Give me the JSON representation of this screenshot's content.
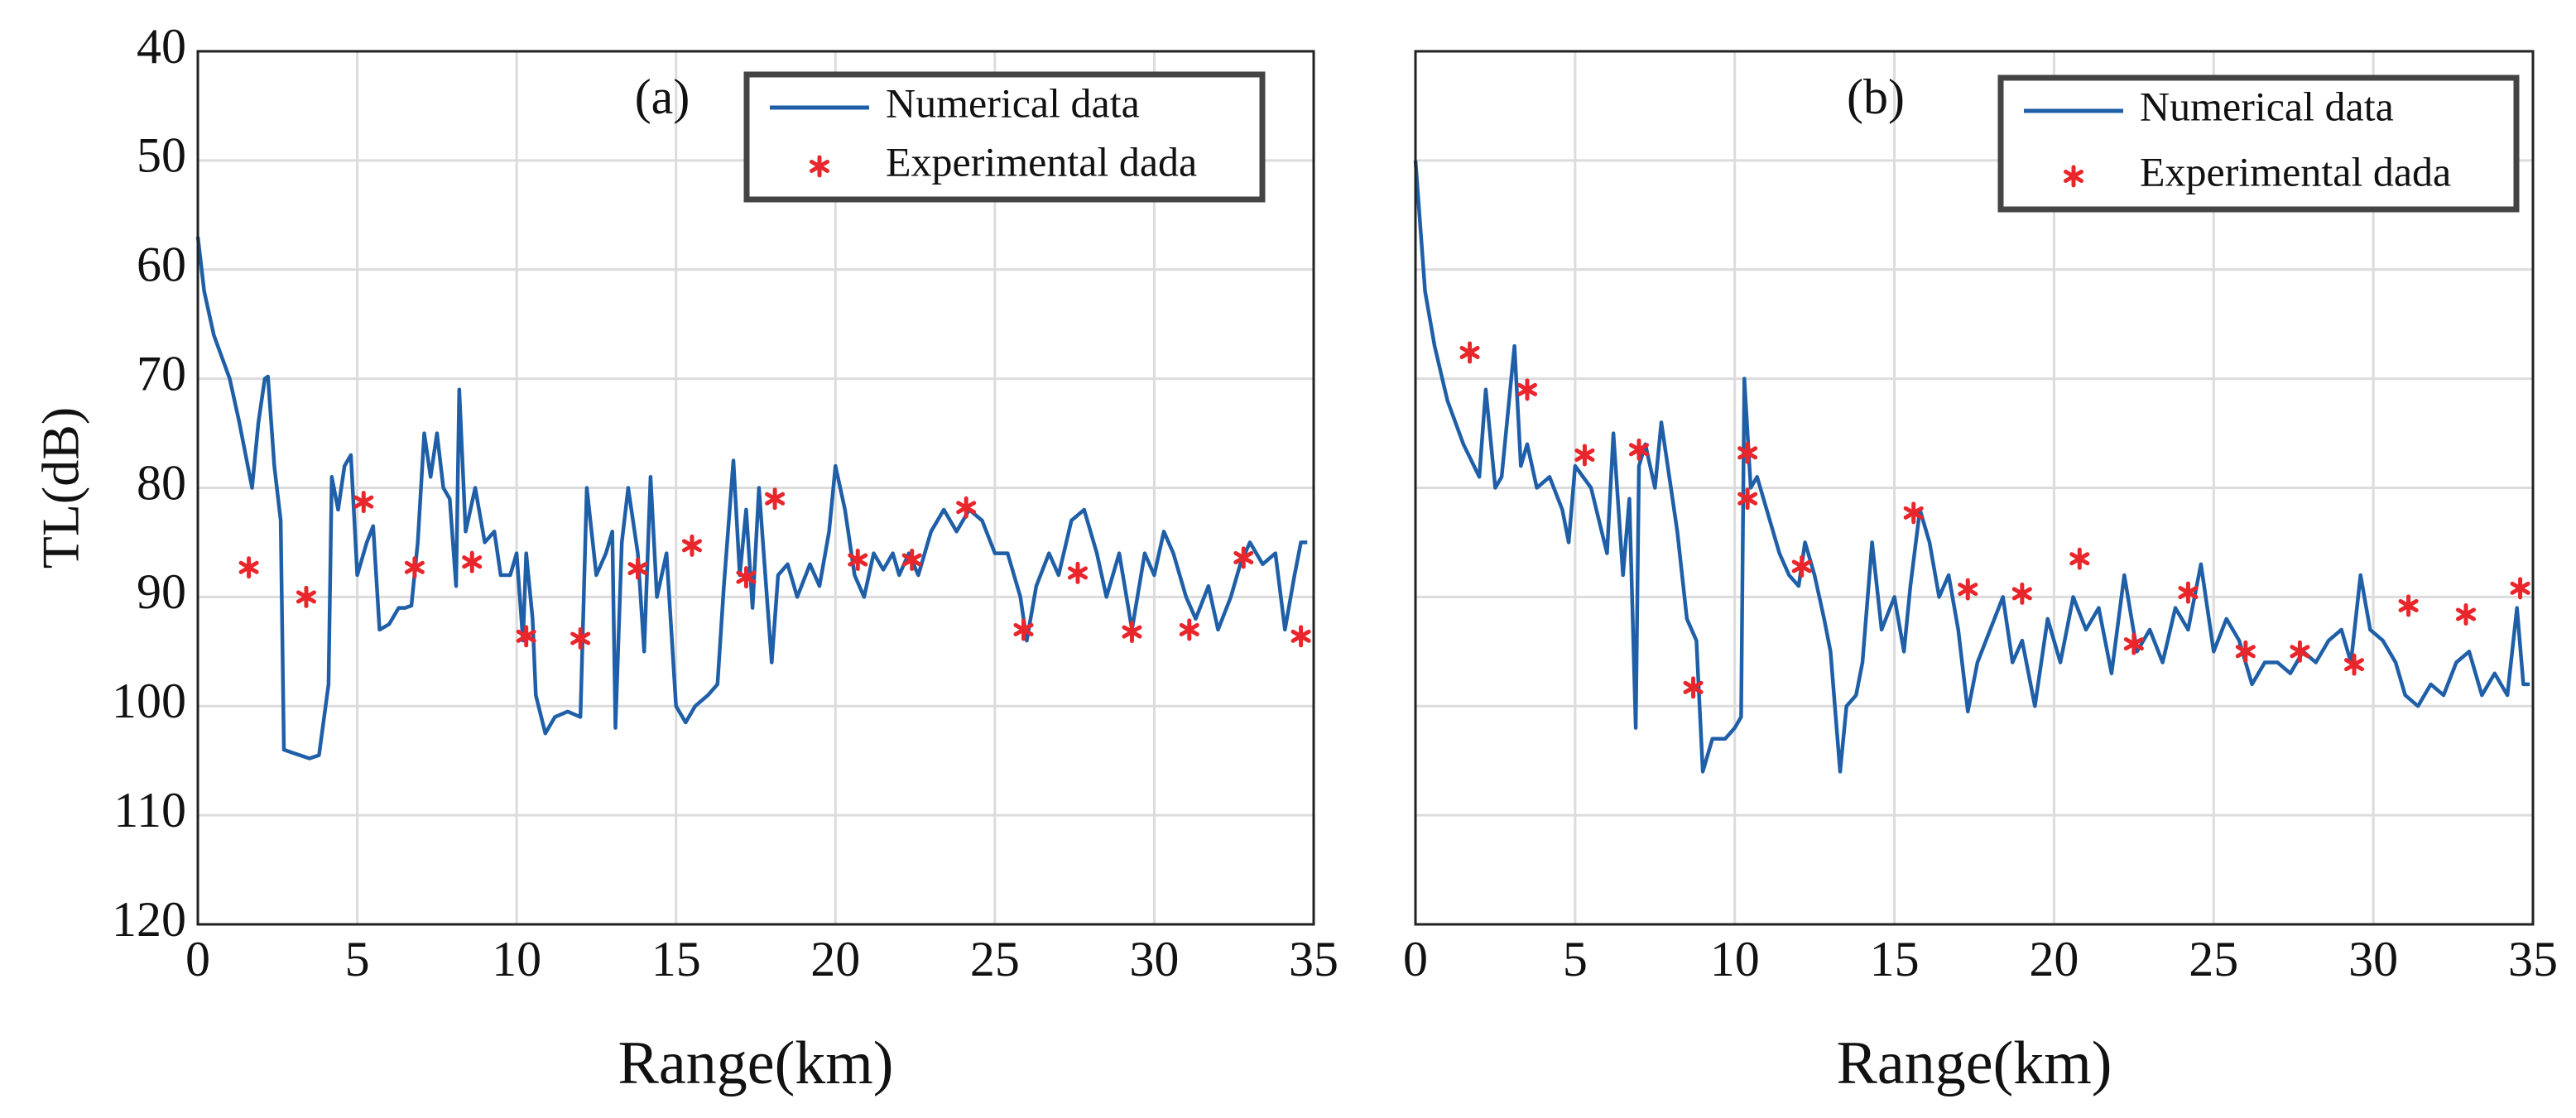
{
  "chart_data": [
    {
      "type": "line",
      "panel_label": "(a)",
      "xlabel": "Range(km)",
      "ylabel": "TL(dB)",
      "xlim": [
        0,
        35
      ],
      "xticks": [
        0,
        5,
        10,
        15,
        20,
        25,
        30,
        35
      ],
      "ylim": [
        120,
        40
      ],
      "yticks": [
        40,
        50,
        60,
        70,
        80,
        90,
        100,
        110,
        120
      ],
      "grid": true,
      "legend": "upper right",
      "series": [
        {
          "name": "Numerical data",
          "color": "#1f5fa8",
          "marker": "none",
          "x": [
            0,
            0.2,
            0.5,
            1,
            1.3,
            1.5,
            1.7,
            1.9,
            2.1,
            2.2,
            2.4,
            2.6,
            2.7,
            3,
            3.5,
            3.8,
            4.1,
            4.2,
            4.4,
            4.6,
            4.8,
            5.0,
            5.3,
            5.5,
            5.7,
            6,
            6.3,
            6.5,
            6.7,
            6.9,
            7.1,
            7.3,
            7.5,
            7.7,
            7.9,
            8.1,
            8.2,
            8.4,
            8.7,
            9,
            9.3,
            9.5,
            9.8,
            10,
            10.2,
            10.3,
            10.5,
            10.6,
            10.9,
            11.2,
            11.6,
            12,
            12.2,
            12.5,
            12.8,
            13,
            13.1,
            13.3,
            13.5,
            13.8,
            14,
            14.2,
            14.4,
            14.7,
            15,
            15.3,
            15.6,
            16,
            16.3,
            16.5,
            16.8,
            17,
            17.2,
            17.4,
            17.6,
            17.9,
            18,
            18.2,
            18.5,
            18.8,
            19.2,
            19.5,
            19.8,
            20,
            20.3,
            20.6,
            20.9,
            21.2,
            21.5,
            21.8,
            22,
            22.3,
            22.6,
            23,
            23.4,
            23.8,
            24.2,
            24.6,
            25,
            25.4,
            25.8,
            26,
            26.3,
            26.7,
            27,
            27.4,
            27.8,
            28.2,
            28.5,
            28.9,
            29.3,
            29.7,
            30,
            30.3,
            30.6,
            31,
            31.3,
            31.7,
            32,
            32.4,
            32.7,
            33,
            33.4,
            33.8,
            34.1,
            34.4,
            34.6,
            34.8
          ],
          "values": [
            57,
            62,
            66,
            70,
            74,
            77,
            80,
            74,
            70,
            69.8,
            78,
            83,
            104,
            104.3,
            104.8,
            104.5,
            98,
            79,
            82,
            78,
            77,
            88,
            85,
            83.5,
            93,
            92.5,
            91,
            91,
            90.8,
            85,
            75,
            79,
            75,
            80,
            81,
            89,
            71,
            84,
            80,
            85,
            84,
            88,
            88,
            86,
            94,
            86,
            92,
            99,
            102.5,
            101,
            100.5,
            101,
            80,
            88,
            86,
            84,
            102,
            85,
            80,
            86,
            95,
            79,
            90,
            86,
            100,
            101.5,
            100,
            99,
            98,
            89,
            77.5,
            88,
            82,
            91,
            80,
            92,
            96,
            88,
            87,
            90,
            87,
            89,
            84,
            78,
            82,
            88,
            90,
            86,
            87.5,
            86,
            88,
            86,
            88,
            84,
            82,
            84,
            82,
            83,
            86,
            86,
            90,
            94,
            89,
            86,
            88,
            83,
            82,
            86,
            90,
            86,
            93,
            86,
            88,
            84,
            86,
            90,
            92,
            89,
            93,
            90,
            87,
            85,
            87,
            86,
            93,
            88,
            85,
            85
          ]
        },
        {
          "name": "Experimental dada",
          "color": "#e8262b",
          "marker": "asterisk",
          "x": [
            1.6,
            3.4,
            5.2,
            6.8,
            8.6,
            10.3,
            12,
            13.8,
            15.5,
            17.2,
            18.1,
            20.7,
            22.4,
            24.1,
            25.9,
            27.6,
            29.3,
            31.1,
            32.8,
            34.6
          ],
          "values": [
            87.3,
            90,
            81.3,
            87.3,
            86.8,
            93.6,
            93.8,
            87.4,
            85.3,
            88.2,
            81,
            86.6,
            86.6,
            81.8,
            93,
            87.8,
            93.2,
            93,
            86.4,
            93.6
          ]
        }
      ]
    },
    {
      "type": "line",
      "panel_label": "(b)",
      "xlabel": "Range(km)",
      "sharey": true,
      "xlim": [
        0,
        35
      ],
      "xticks": [
        0,
        5,
        10,
        15,
        20,
        25,
        30,
        35
      ],
      "ylim": [
        120,
        40
      ],
      "grid": true,
      "legend": "upper right",
      "series": [
        {
          "name": "Numerical data",
          "color": "#1f5fa8",
          "marker": "none",
          "x": [
            0,
            0.3,
            0.6,
            1,
            1.5,
            2,
            2.2,
            2.5,
            2.7,
            3,
            3.1,
            3.3,
            3.5,
            3.8,
            4.2,
            4.6,
            4.8,
            5,
            5.5,
            6,
            6.2,
            6.5,
            6.7,
            6.9,
            7,
            7.2,
            7.5,
            7.7,
            8,
            8.2,
            8.5,
            8.8,
            9.0,
            9.3,
            9.7,
            10,
            10.2,
            10.3,
            10.5,
            10.7,
            11,
            11.4,
            11.7,
            12,
            12.2,
            12.5,
            12.8,
            13,
            13.3,
            13.5,
            13.8,
            14,
            14.3,
            14.6,
            15,
            15.3,
            15.5,
            15.8,
            16.1,
            16.4,
            16.7,
            17,
            17.3,
            17.6,
            18,
            18.4,
            18.7,
            19,
            19.4,
            19.8,
            20.2,
            20.6,
            21,
            21.4,
            21.8,
            22.2,
            22.6,
            23,
            23.4,
            23.8,
            24.2,
            24.6,
            25,
            25.4,
            25.8,
            26.2,
            26.6,
            27,
            27.4,
            27.8,
            28.2,
            28.6,
            29,
            29.3,
            29.6,
            29.9,
            30.3,
            30.7,
            31,
            31.4,
            31.8,
            32.2,
            32.6,
            33,
            33.4,
            33.8,
            34.2,
            34.5,
            34.7,
            34.9
          ],
          "values": [
            50,
            62,
            67,
            72,
            76,
            79,
            71,
            80,
            79,
            70,
            67,
            78,
            76,
            80,
            79,
            82,
            85,
            78,
            80,
            86,
            75,
            88,
            81,
            102,
            78,
            76,
            80,
            74,
            80,
            84,
            92,
            94,
            106,
            103,
            103,
            102,
            101,
            70,
            80,
            79,
            82,
            86,
            88,
            89,
            85,
            88,
            92,
            95,
            106,
            100,
            99,
            96,
            85,
            93,
            90,
            95,
            89,
            82,
            85,
            90,
            88,
            93,
            100.5,
            96,
            93,
            90,
            96,
            94,
            100,
            92,
            96,
            90,
            93,
            91,
            97,
            88,
            95,
            93,
            96,
            91,
            93,
            87,
            95,
            92,
            94,
            98,
            96,
            96,
            97,
            95,
            96,
            94,
            93,
            96,
            88,
            93,
            94,
            96,
            99,
            100,
            98,
            99,
            96,
            95,
            99,
            97,
            99,
            91,
            98,
            98
          ]
        },
        {
          "name": "Experimental dada",
          "color": "#e8262b",
          "marker": "asterisk",
          "x": [
            1.7,
            3.5,
            5.3,
            7,
            8.7,
            10.4,
            10.4,
            12.1,
            15.6,
            17.3,
            19,
            20.8,
            22.5,
            24.2,
            26,
            27.7,
            29.4,
            31.1,
            32.9,
            34.6
          ],
          "values": [
            67.6,
            71,
            77,
            76.5,
            98.3,
            76.8,
            81,
            87.2,
            82.3,
            89.3,
            89.7,
            86.5,
            94.3,
            89.6,
            95,
            95,
            96.2,
            90.8,
            91.6,
            89.2
          ]
        }
      ]
    }
  ]
}
